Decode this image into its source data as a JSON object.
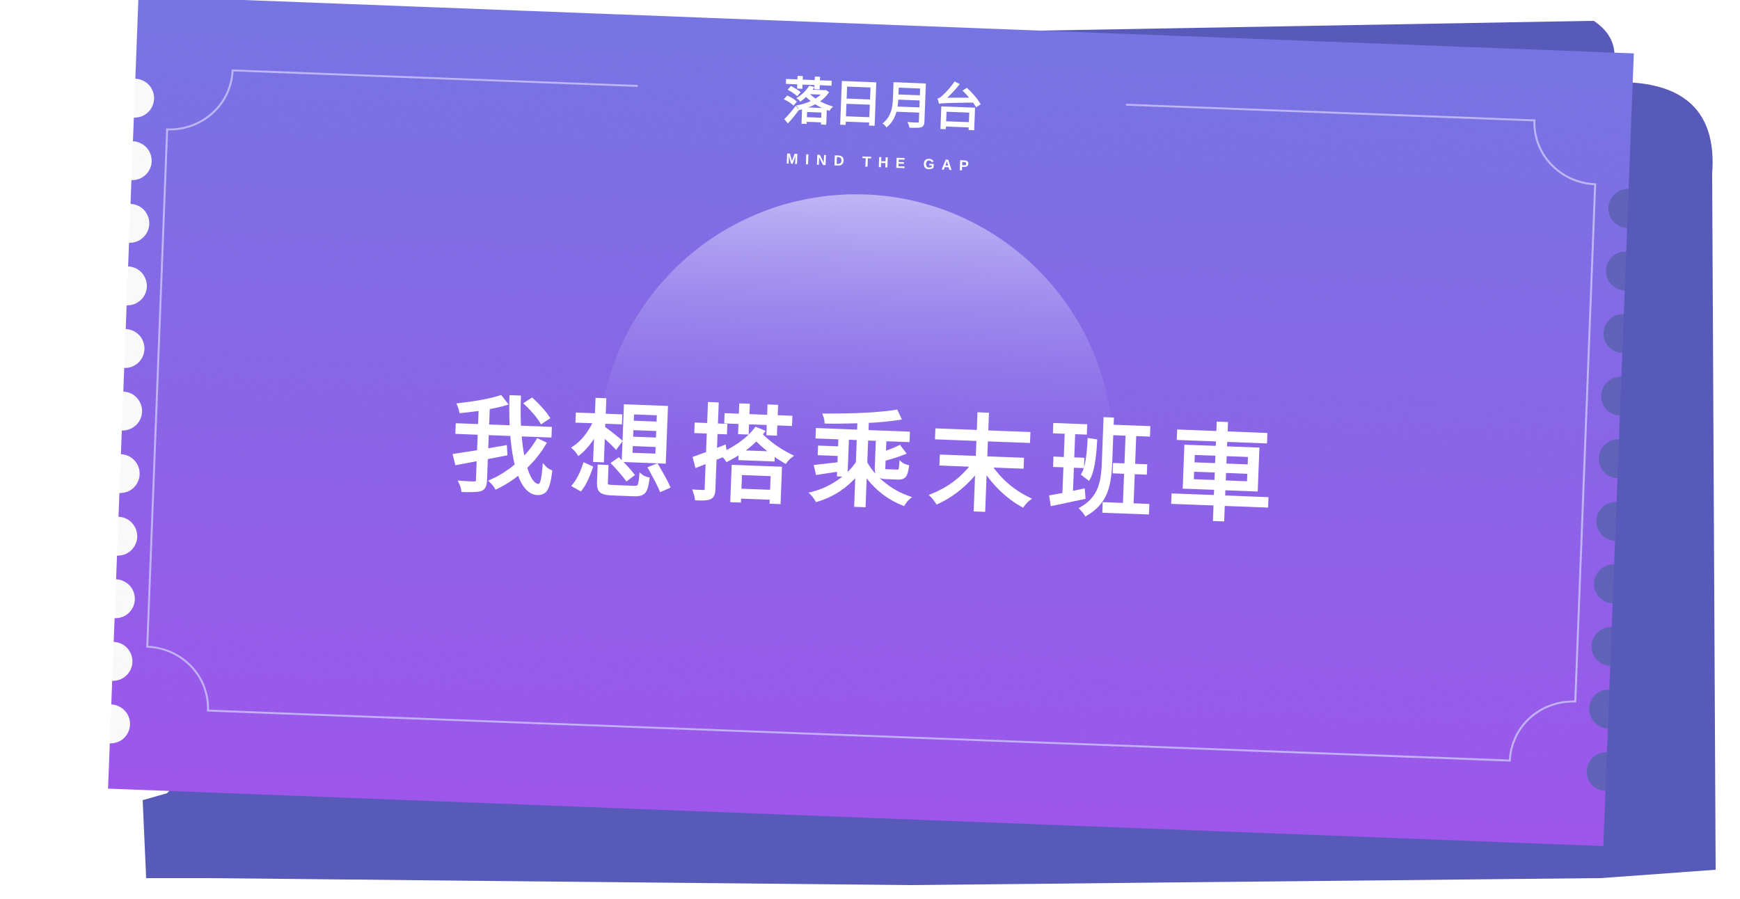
{
  "ticket": {
    "brand_title": "落日月台",
    "brand_subtitle": "MIND THE GAP",
    "headline": "我想搭乘末班車"
  },
  "colors": {
    "ticket_top": "#6f6ee6",
    "ticket_bottom": "#9b4cf0",
    "shadow": "#575ab8",
    "border_line": "#c9c2f7",
    "sun_glow": "#d6cdfb",
    "text": "#ffffff"
  }
}
